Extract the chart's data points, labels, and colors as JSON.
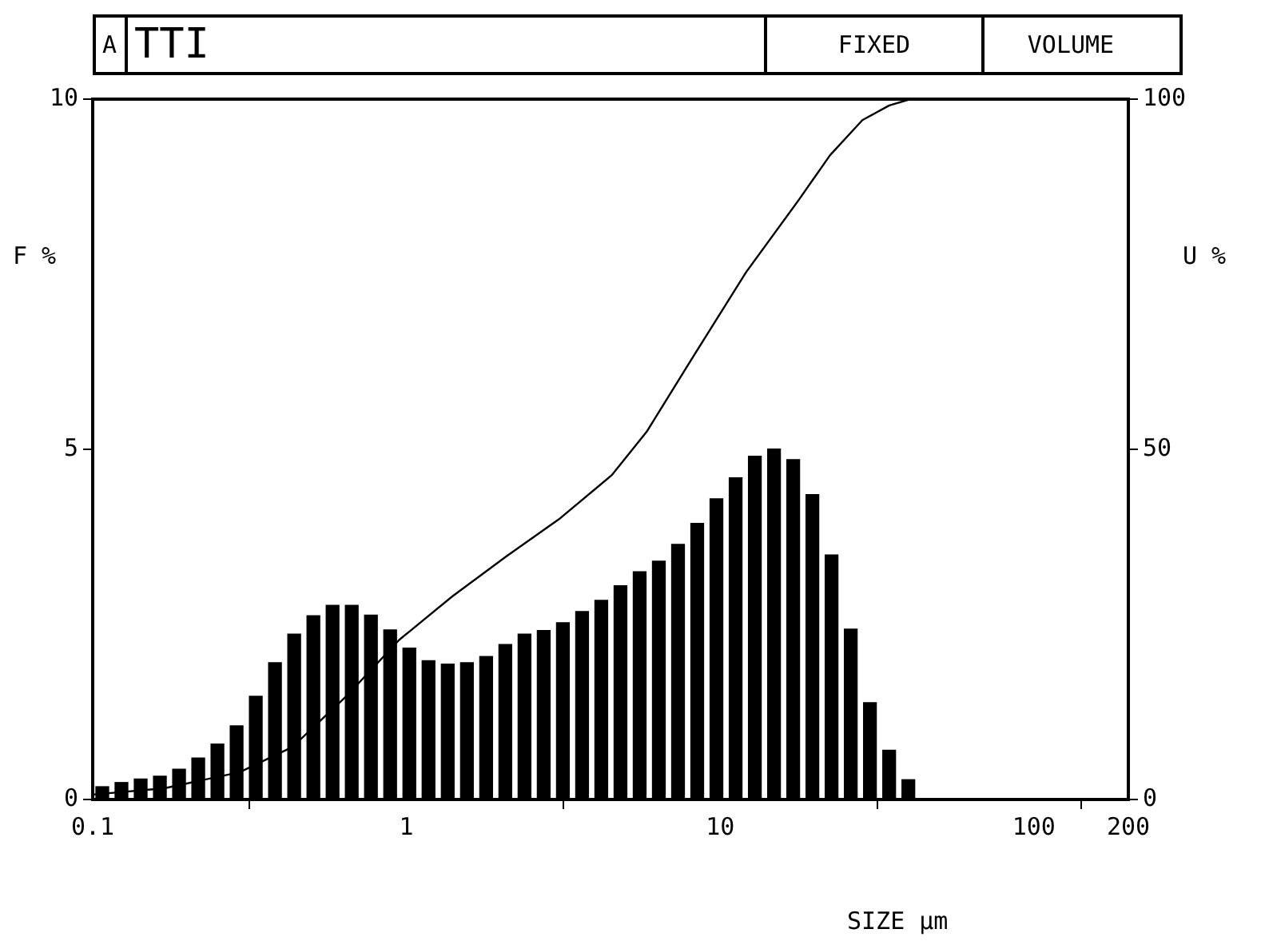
{
  "chart_data": {
    "type": "histogram",
    "title": "TTI",
    "annotations": [
      "A",
      "FIXED",
      "VOLUME"
    ],
    "xlabel": "SIZE µm",
    "ylabel": "F %",
    "y2label": "U %",
    "log": "x",
    "series": [
      {
        "type": "histogram",
        "color": "#000000",
        "bins": [
          0.1,
          0.1151,
          0.1325,
          0.1526,
          0.1757,
          0.2022,
          0.2328,
          0.268,
          0.3085,
          0.3552,
          0.4089,
          0.4708,
          0.542,
          0.6239,
          0.7183,
          0.827,
          0.9522,
          1.096,
          1.262,
          1.453,
          1.673,
          1.926,
          2.217,
          2.552,
          2.939,
          3.383,
          3.895,
          4.484,
          5.162,
          5.942,
          6.841,
          7.876,
          9.067,
          10.44,
          12.02,
          13.84,
          15.93,
          18.34,
          21.11,
          24.3,
          27.98,
          32.21,
          37.09,
          42.69
        ],
        "values": [
          0.19,
          0.25,
          0.3,
          0.34,
          0.44,
          0.6,
          0.8,
          1.06,
          1.48,
          1.96,
          2.37,
          2.63,
          2.78,
          2.78,
          2.64,
          2.43,
          2.17,
          1.99,
          1.94,
          1.96,
          2.05,
          2.22,
          2.37,
          2.42,
          2.53,
          2.69,
          2.85,
          3.06,
          3.26,
          3.41,
          3.65,
          3.95,
          4.3,
          4.6,
          4.91,
          5.01,
          4.86,
          4.36,
          3.5,
          2.44,
          1.39,
          0.71,
          0.29
        ]
      },
      {
        "type": "line",
        "axis": "y2",
        "color": "#000000",
        "x": [
          0.1,
          0.169,
          0.294,
          0.433,
          0.645,
          0.949,
          1.4,
          2.08,
          3.06,
          4.51,
          5.83,
          8.09,
          12.1,
          17.8,
          22.4,
          28.4,
          34.6,
          40.4,
          200
        ],
        "values": [
          0.7,
          1.6,
          3.9,
          7.5,
          14.8,
          22.8,
          29,
          34.7,
          40,
          46.3,
          52.5,
          62.8,
          75.3,
          85.6,
          92,
          97,
          99.1,
          100,
          100
        ]
      }
    ],
    "xlim": [
      0.1,
      200
    ],
    "xticks": [
      0.1,
      1,
      10,
      100,
      200
    ],
    "ylim": [
      0,
      10
    ],
    "yticks": [
      0,
      5,
      10
    ],
    "y2lim": [
      0,
      100
    ],
    "y2ticks": [
      0,
      50,
      100
    ]
  }
}
